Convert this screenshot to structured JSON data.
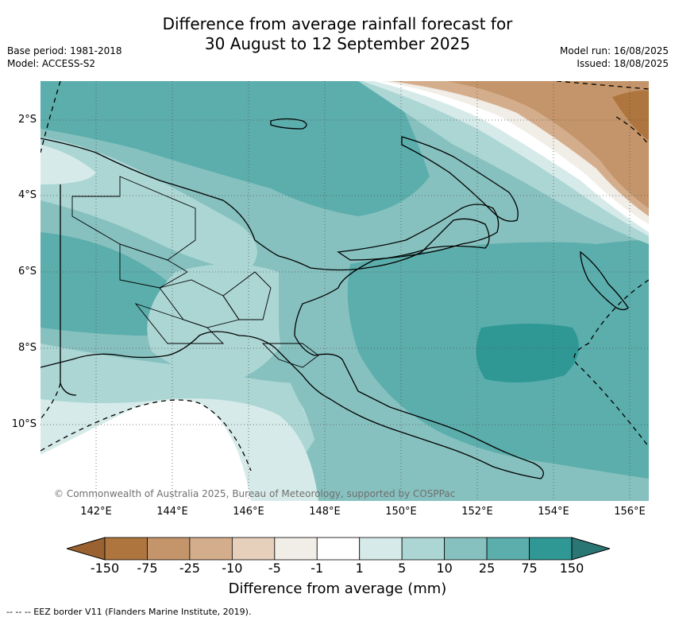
{
  "header": {
    "title_line1": "Difference from average rainfall forecast for",
    "title_line2": "30 August to 12 September 2025",
    "base_period": "Base period: 1981-2018",
    "model": "Model: ACCESS-S2",
    "model_run": "Model run: 16/08/2025",
    "issued": "Issued: 18/08/2025"
  },
  "map": {
    "x_ticks": [
      "142°E",
      "144°E",
      "146°E",
      "148°E",
      "150°E",
      "152°E",
      "154°E",
      "156°E"
    ],
    "y_ticks": [
      "2°S",
      "4°S",
      "6°S",
      "8°S",
      "10°S"
    ],
    "copyright": "© Commonwealth of Australia 2025, Bureau of Meteorology, supported by COSPPac"
  },
  "colorbar": {
    "title": "Difference from average (mm)",
    "labels": [
      "-150",
      "-75",
      "-25",
      "-10",
      "-5",
      "-1",
      "1",
      "5",
      "10",
      "25",
      "75",
      "150"
    ],
    "colors": [
      "#9a6230",
      "#ae753e",
      "#c4956a",
      "#d4ae8c",
      "#e6d0bc",
      "#f1ede7",
      "#ffffff",
      "#d6ebe9",
      "#acd6d4",
      "#86c1bf",
      "#5baeac",
      "#2f9895",
      "#2a7674"
    ]
  },
  "footer": {
    "eez_note": "--  --  -- EEZ border V11 (Flanders Marine Institute, 2019)."
  }
}
